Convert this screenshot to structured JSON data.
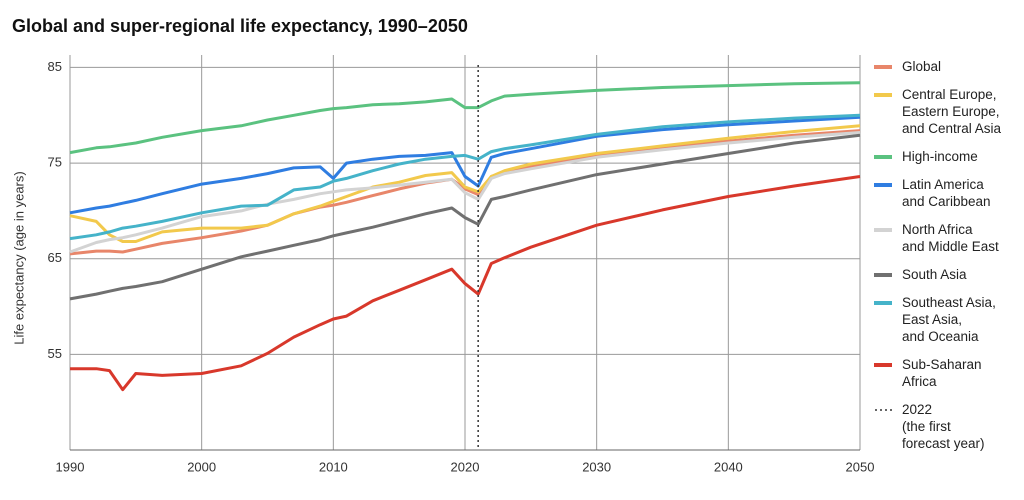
{
  "chart_data": {
    "type": "line",
    "title": "Global and super-regional life expectancy, 1990–2050",
    "y_label": "Life expectancy (age in years)",
    "x": [
      1990,
      1992,
      1993,
      1994,
      1995,
      1997,
      2000,
      2003,
      2005,
      2007,
      2009,
      2010,
      2011,
      2013,
      2015,
      2017,
      2019,
      2020,
      2021,
      2022,
      2023,
      2025,
      2030,
      2035,
      2040,
      2045,
      2050
    ],
    "series": [
      {
        "name": "Global",
        "color": "#e8866a",
        "values": [
          65.5,
          65.8,
          65.8,
          65.7,
          66.0,
          66.6,
          67.2,
          67.9,
          68.5,
          69.7,
          70.4,
          70.6,
          70.9,
          71.6,
          72.3,
          72.9,
          73.3,
          72.3,
          71.7,
          73.6,
          74.0,
          74.6,
          75.8,
          76.6,
          77.3,
          77.9,
          78.4
        ]
      },
      {
        "name": "Central Europe,\nEastern Europe,\nand Central Asia",
        "color": "#f2c94c",
        "values": [
          69.5,
          68.9,
          67.5,
          66.8,
          66.8,
          67.8,
          68.2,
          68.2,
          68.5,
          69.7,
          70.5,
          71.0,
          71.5,
          72.5,
          73.0,
          73.7,
          74.0,
          72.5,
          72.0,
          73.6,
          74.2,
          74.9,
          76.0,
          76.8,
          77.6,
          78.3,
          78.9
        ]
      },
      {
        "name": "High-income",
        "color": "#5bc280",
        "values": [
          76.1,
          76.6,
          76.7,
          76.9,
          77.1,
          77.7,
          78.4,
          78.9,
          79.5,
          80.0,
          80.5,
          80.7,
          80.8,
          81.1,
          81.2,
          81.4,
          81.7,
          80.8,
          80.8,
          81.5,
          82.0,
          82.2,
          82.6,
          82.9,
          83.1,
          83.3,
          83.4
        ]
      },
      {
        "name": "Latin America\nand Caribbean",
        "color": "#2f7de1",
        "values": [
          69.8,
          70.3,
          70.5,
          70.8,
          71.1,
          71.8,
          72.8,
          73.4,
          73.9,
          74.5,
          74.6,
          73.4,
          75.0,
          75.4,
          75.7,
          75.8,
          76.1,
          73.6,
          72.6,
          75.6,
          76.0,
          76.5,
          77.8,
          78.5,
          79.0,
          79.4,
          79.8
        ]
      },
      {
        "name": "North Africa\nand Middle East",
        "color": "#d3d3d3",
        "values": [
          65.7,
          66.7,
          67.0,
          67.2,
          67.5,
          68.2,
          69.4,
          70.0,
          70.7,
          71.2,
          71.8,
          72.0,
          72.2,
          72.4,
          72.7,
          73.0,
          73.3,
          71.9,
          71.2,
          73.4,
          73.9,
          74.4,
          75.6,
          76.4,
          77.1,
          77.7,
          78.2
        ]
      },
      {
        "name": "South Asia",
        "color": "#707070",
        "values": [
          60.8,
          61.3,
          61.6,
          61.9,
          62.1,
          62.6,
          63.9,
          65.2,
          65.8,
          66.4,
          67.0,
          67.4,
          67.7,
          68.3,
          69.0,
          69.7,
          70.3,
          69.3,
          68.6,
          71.2,
          71.5,
          72.2,
          73.8,
          74.9,
          76.0,
          77.1,
          77.9
        ]
      },
      {
        "name": "Southeast Asia,\nEast Asia,\nand Oceania",
        "color": "#45b3c9",
        "values": [
          67.1,
          67.5,
          67.8,
          68.2,
          68.4,
          68.9,
          69.8,
          70.5,
          70.6,
          72.2,
          72.5,
          73.1,
          73.4,
          74.2,
          74.9,
          75.4,
          75.7,
          75.8,
          75.4,
          76.2,
          76.5,
          76.9,
          78.0,
          78.8,
          79.3,
          79.7,
          80.0
        ]
      },
      {
        "name": "Sub-Saharan\nAfrica",
        "color": "#d8382b",
        "values": [
          53.5,
          53.5,
          53.3,
          51.3,
          53.0,
          52.8,
          53.0,
          53.8,
          55.1,
          56.8,
          58.1,
          58.7,
          59.0,
          60.6,
          61.7,
          62.8,
          63.9,
          62.4,
          61.3,
          64.5,
          65.1,
          66.2,
          68.5,
          70.1,
          71.5,
          72.6,
          73.6
        ]
      }
    ],
    "forecast_line_x": 2021,
    "forecast_label": "2022\n(the first\nforecast year)",
    "xlim": [
      1990,
      2050
    ],
    "xticks": [
      1990,
      2000,
      2010,
      2020,
      2030,
      2040,
      2050
    ],
    "ylim": [
      45,
      86.3
    ],
    "yticks": [
      55,
      65,
      75,
      85
    ],
    "grid": true
  }
}
